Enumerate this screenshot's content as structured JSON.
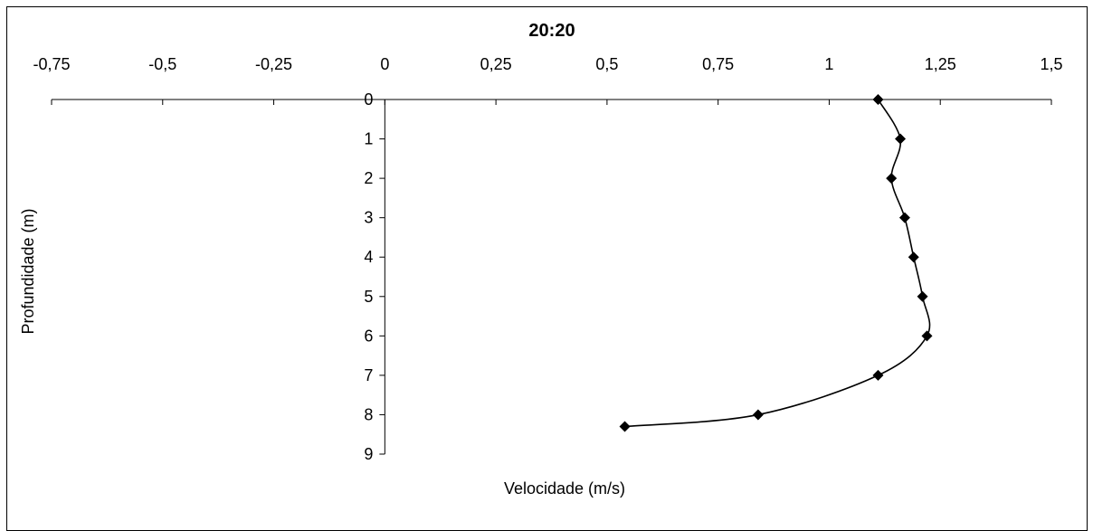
{
  "chart_data": {
    "type": "line",
    "title": "20:20",
    "xlabel": "Velocidade (m/s)",
    "ylabel": "Profundidade (m)",
    "xlim": [
      -0.75,
      1.5
    ],
    "ylim": [
      0,
      9
    ],
    "y_inverted": true,
    "x_axis_position": "top",
    "x_ticks": [
      -0.75,
      -0.5,
      -0.25,
      0,
      0.25,
      0.5,
      0.75,
      1,
      1.25,
      1.5
    ],
    "x_tick_labels": [
      "-0,75",
      "-0,5",
      "-0,25",
      "0",
      "0,25",
      "0,5",
      "0,75",
      "1",
      "1,25",
      "1,5"
    ],
    "y_ticks": [
      0,
      1,
      2,
      3,
      4,
      5,
      6,
      7,
      8,
      9
    ],
    "y_tick_labels": [
      "0",
      "1",
      "2",
      "3",
      "4",
      "5",
      "6",
      "7",
      "8",
      "9"
    ],
    "grid": false,
    "series": [
      {
        "marker": "diamond",
        "smooth": true,
        "color": "#000000",
        "points": [
          {
            "x": 1.11,
            "y": 0
          },
          {
            "x": 1.16,
            "y": 1
          },
          {
            "x": 1.14,
            "y": 2
          },
          {
            "x": 1.17,
            "y": 3
          },
          {
            "x": 1.19,
            "y": 4
          },
          {
            "x": 1.21,
            "y": 5
          },
          {
            "x": 1.22,
            "y": 6
          },
          {
            "x": 1.11,
            "y": 7
          },
          {
            "x": 0.84,
            "y": 8
          },
          {
            "x": 0.54,
            "y": 8.3
          }
        ]
      }
    ]
  }
}
